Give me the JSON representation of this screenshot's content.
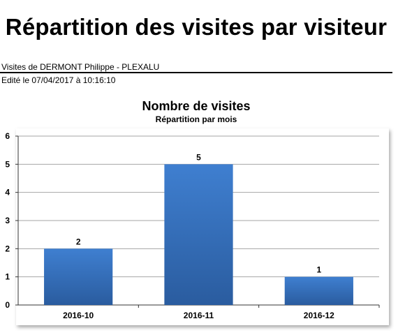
{
  "report": {
    "title": "Répartition des visites par visiteur",
    "visitor_line": "Visites de DERMONT Philippe - PLEXALU",
    "edited_line": "Edité le 07/04/2017 à 10:16:10"
  },
  "chart_data": {
    "type": "bar",
    "title": "Nombre de visites",
    "subtitle": "Répartition par mois",
    "categories": [
      "2016-10",
      "2016-11",
      "2016-12"
    ],
    "values": [
      2,
      5,
      1
    ],
    "ylim": [
      0,
      6
    ],
    "yticks": [
      0,
      1,
      2,
      3,
      4,
      5,
      6
    ],
    "grid": true,
    "data_labels": true,
    "colors": {
      "bar_top": "#3f7fd0",
      "bar_bottom": "#2a5c9f",
      "grid": "#a6a6a6"
    }
  }
}
